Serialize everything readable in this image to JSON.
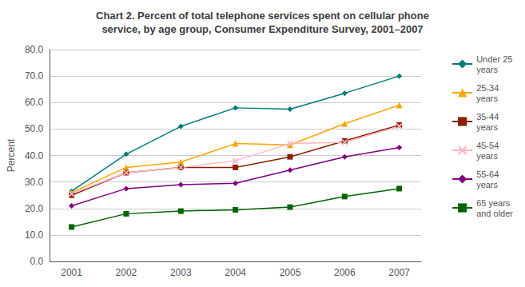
{
  "chart_data": {
    "type": "line",
    "title": "Chart 2. Percent of total telephone services spent on cellular phone\nservice, by age group, Consumer Expenditure Survey, 2001–2007",
    "y_label": "Percent",
    "x": [
      2001,
      2002,
      2003,
      2004,
      2005,
      2006,
      2007
    ],
    "series": [
      {
        "name": "Under 25\nyears",
        "color": "#007B7B",
        "marker": "diamond",
        "values": [
          26.5,
          40.5,
          51.0,
          58.0,
          57.5,
          63.5,
          70.0
        ]
      },
      {
        "name": "25-34\nyears",
        "color": "#FFA500",
        "marker": "triangle",
        "values": [
          26.0,
          35.5,
          37.5,
          44.5,
          44.0,
          52.0,
          59.0
        ]
      },
      {
        "name": "35-44\nyears",
        "color": "#8B2000",
        "marker": "square",
        "values": [
          25.0,
          33.5,
          35.5,
          35.5,
          39.5,
          45.5,
          51.5
        ]
      },
      {
        "name": "45-54\nyears",
        "color": "#FFB6C1",
        "marker": "x",
        "values": [
          25.5,
          33.5,
          35.5,
          38.0,
          44.5,
          45.0,
          51.0
        ]
      },
      {
        "name": "55-64\nyears",
        "color": "#800080",
        "marker": "diamond",
        "values": [
          21.0,
          27.5,
          29.0,
          29.5,
          34.5,
          39.5,
          43.0
        ]
      },
      {
        "name": "65 years\nand older",
        "color": "#006400",
        "marker": "square",
        "values": [
          13.0,
          18.0,
          19.0,
          19.5,
          20.5,
          24.5,
          27.5
        ]
      }
    ],
    "xlim": [
      2000.6,
      2007.4
    ],
    "xticks": [
      2001,
      2002,
      2003,
      2004,
      2005,
      2006,
      2007
    ],
    "ylim": [
      0.0,
      80.0
    ],
    "yticks": [
      {
        "value": 0,
        "label": "0.0"
      },
      {
        "value": 10,
        "label": "10.0"
      },
      {
        "value": 20,
        "label": "20.0"
      },
      {
        "value": 30,
        "label": "30.0"
      },
      {
        "value": 40,
        "label": "40.0"
      },
      {
        "value": 50,
        "label": "50.0"
      },
      {
        "value": 60,
        "label": "60.0"
      },
      {
        "value": 70,
        "label": "70.0"
      },
      {
        "value": 80,
        "label": "80.0"
      }
    ],
    "grid": "y",
    "legend": "right"
  }
}
